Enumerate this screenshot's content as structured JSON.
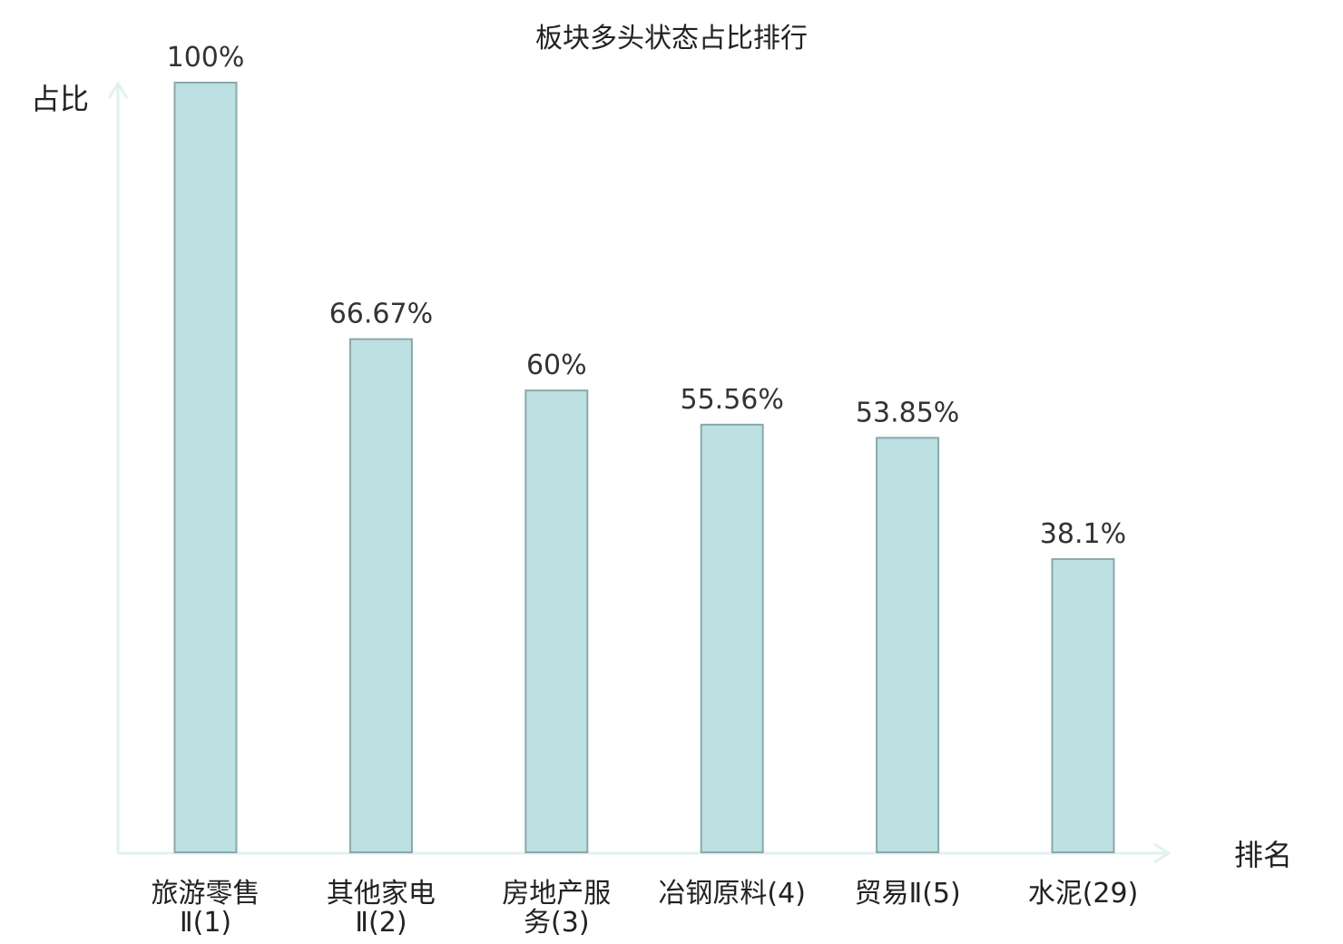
{
  "colors": {
    "bar_fill": "#bde0e3",
    "bar_stroke": "#8aa8ab",
    "axis": "#dff2ef",
    "text": "#222222",
    "value_text": "#333333",
    "highlight": "#e02020"
  },
  "chart_data": {
    "type": "bar",
    "title": "板块多头状态占比排行",
    "ylabel": "占比",
    "xlabel": "排名",
    "ylim": [
      0,
      100
    ],
    "grid": false,
    "categories": [
      {
        "lines": [
          "旅游零售",
          "Ⅱ(1)"
        ],
        "highlight": false
      },
      {
        "lines": [
          "其他家电",
          "Ⅱ(2)"
        ],
        "highlight": false
      },
      {
        "lines": [
          "房地产服",
          "务(3)"
        ],
        "highlight": false
      },
      {
        "lines": [
          "冶钢原料(4)"
        ],
        "highlight": false
      },
      {
        "lines": [
          "贸易Ⅱ(5)"
        ],
        "highlight": false
      },
      {
        "lines": [
          "水泥(29)"
        ],
        "highlight": true
      }
    ],
    "values": [
      100,
      66.67,
      60,
      55.56,
      53.85,
      38.1
    ],
    "value_labels": [
      "100%",
      "66.67%",
      "60%",
      "55.56%",
      "53.85%",
      "38.1%"
    ]
  }
}
